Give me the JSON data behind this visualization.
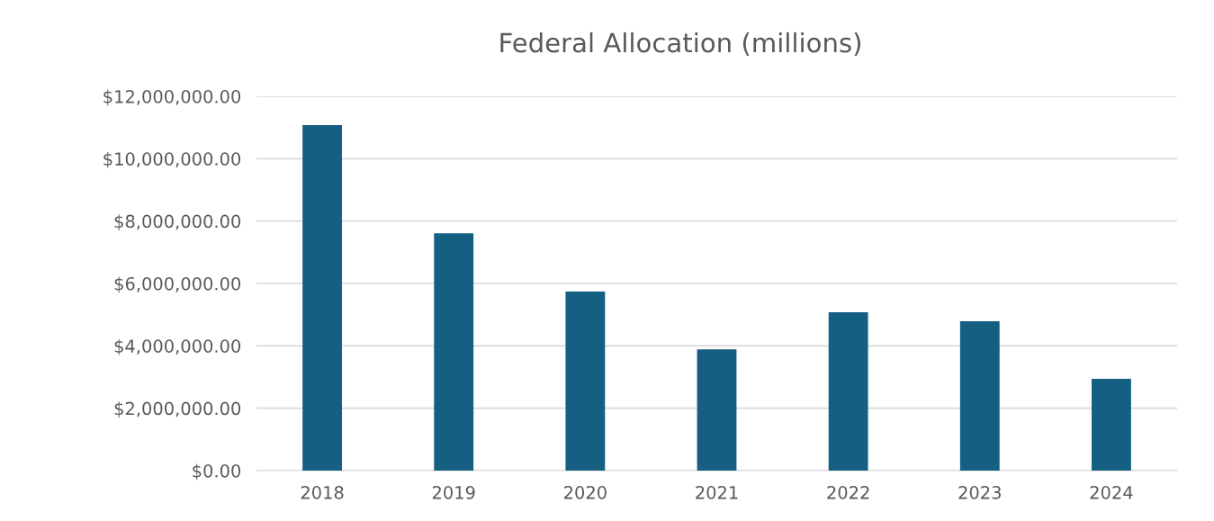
{
  "chart_data": {
    "type": "bar",
    "title": "Federal Allocation (millions)",
    "categories": [
      "2018",
      "2019",
      "2020",
      "2021",
      "2022",
      "2023",
      "2024"
    ],
    "values": [
      11080000,
      7610000,
      5740000,
      3890000,
      5080000,
      4790000,
      2940000
    ],
    "color": "#156082",
    "ylim": [
      0,
      12000000
    ],
    "yticks": [
      {
        "value": 0,
        "label": "$0.00"
      },
      {
        "value": 2000000,
        "label": "$2,000,000.00"
      },
      {
        "value": 4000000,
        "label": "$4,000,000.00"
      },
      {
        "value": 6000000,
        "label": "$6,000,000.00"
      },
      {
        "value": 8000000,
        "label": "$8,000,000.00"
      },
      {
        "value": 10000000,
        "label": "$10,000,000.00"
      },
      {
        "value": 12000000,
        "label": "$12,000,000.00"
      }
    ],
    "grid": "y"
  }
}
